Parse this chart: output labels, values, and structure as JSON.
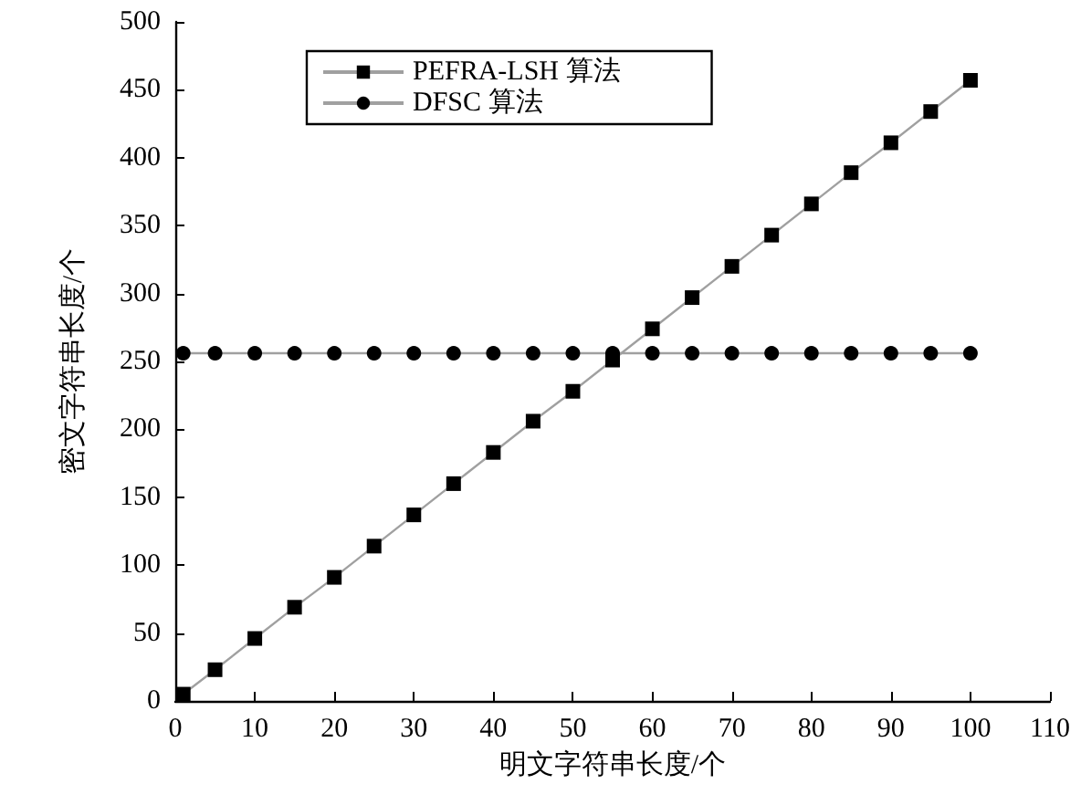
{
  "chart_data": {
    "type": "line",
    "xlabel": "明文字符串长度/个",
    "ylabel": "密文字符串长度/个",
    "xlim": [
      0,
      110
    ],
    "xticks": [
      0,
      10,
      20,
      30,
      40,
      50,
      60,
      70,
      80,
      90,
      100,
      110
    ],
    "ylim": [
      0,
      500
    ],
    "yticks": [
      0,
      50,
      100,
      150,
      200,
      250,
      300,
      350,
      400,
      450,
      500
    ],
    "grid": false,
    "legend": "top left",
    "line_style": "solid",
    "series": [
      {
        "name": "PEFRA-LSH 算法",
        "color": "#000000",
        "marker": "square",
        "x": [
          1,
          5,
          10,
          15,
          20,
          25,
          30,
          35,
          40,
          45,
          50,
          55,
          60,
          65,
          70,
          75,
          80,
          85,
          90,
          95,
          100
        ],
        "values": [
          5,
          23,
          46,
          69,
          91,
          114,
          137,
          160,
          183,
          206,
          228,
          251,
          274,
          297,
          320,
          343,
          366,
          389,
          411,
          434,
          457
        ]
      },
      {
        "name": "DFSC 算法",
        "color": "#000000",
        "marker": "circle",
        "x": [
          1,
          5,
          10,
          15,
          20,
          25,
          30,
          35,
          40,
          45,
          50,
          55,
          60,
          65,
          70,
          75,
          80,
          85,
          90,
          95,
          100
        ],
        "values": [
          256,
          256,
          256,
          256,
          256,
          256,
          256,
          256,
          256,
          256,
          256,
          256,
          256,
          256,
          256,
          256,
          256,
          256,
          256,
          256,
          256
        ]
      }
    ]
  }
}
